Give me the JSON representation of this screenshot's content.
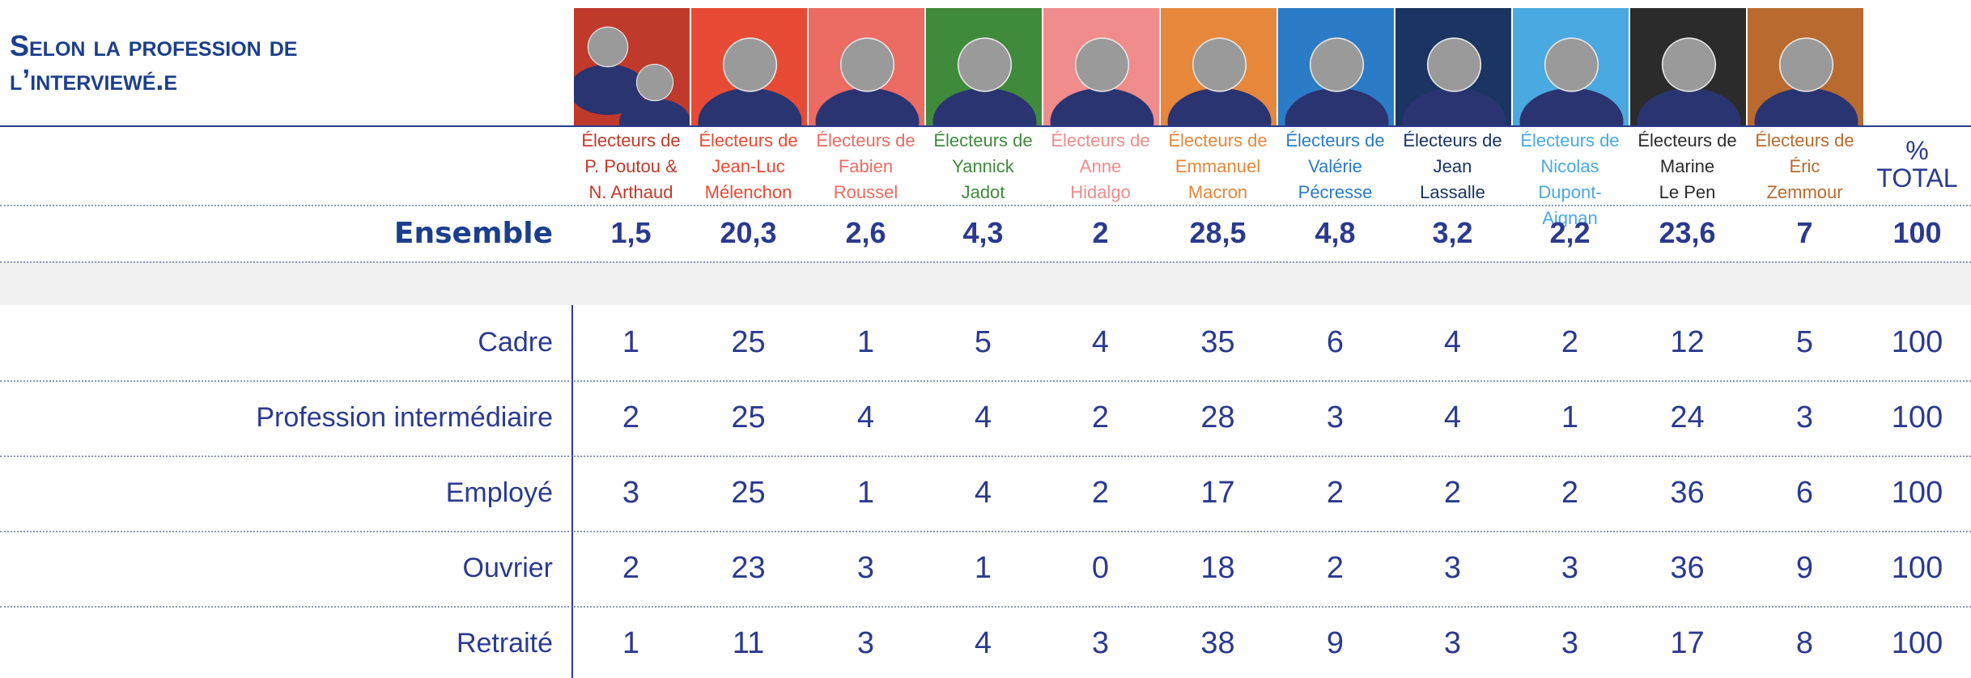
{
  "header": {
    "title": "Selon la profession de l’interviewé.e"
  },
  "columns": [
    {
      "color": "#bf3a2b",
      "label": [
        "Électeurs de",
        "P. Poutou &",
        "N. Arthaud"
      ]
    },
    {
      "color": "#e84b35",
      "label": [
        "Électeurs de",
        "Jean-Luc",
        "Mélenchon"
      ]
    },
    {
      "color": "#ec6b62",
      "label": [
        "Électeurs de",
        "Fabien",
        "Roussel"
      ]
    },
    {
      "color": "#3f8a3b",
      "label": [
        "Électeurs de",
        "Yannick",
        "Jadot"
      ]
    },
    {
      "color": "#f08c8c",
      "label": [
        "Électeurs de",
        "Anne",
        "Hidalgo"
      ]
    },
    {
      "color": "#e6873b",
      "label": [
        "Électeurs de",
        "Emmanuel",
        "Macron"
      ]
    },
    {
      "color": "#2b7bc6",
      "label": [
        "Électeurs de",
        "Valérie",
        "Pécresse"
      ]
    },
    {
      "color": "#1b3461",
      "label": [
        "Électeurs de",
        "Jean",
        "Lassalle"
      ]
    },
    {
      "color": "#4aa9e1",
      "label": [
        "Électeurs de",
        "Nicolas",
        "Dupont-Aignan"
      ]
    },
    {
      "color": "#2b2b2b",
      "label": [
        "Électeurs de",
        "Marine",
        "Le Pen"
      ]
    },
    {
      "color": "#b96a2e",
      "label": [
        "Électeurs de",
        "Éric",
        "Zemmour"
      ]
    }
  ],
  "total_header": [
    "%",
    "TOTAL"
  ],
  "ensemble": {
    "label": "Ensemble",
    "values": [
      "1,5",
      "20,3",
      "2,6",
      "4,3",
      2,
      "28,5",
      "4,8",
      "3,2",
      "2,2",
      "23,6",
      7,
      100
    ]
  },
  "table": {
    "rows": [
      {
        "label": "Cadre",
        "values": [
          1,
          25,
          1,
          5,
          4,
          35,
          6,
          4,
          2,
          12,
          5,
          100
        ]
      },
      {
        "label": "Profession intermédiaire",
        "values": [
          2,
          25,
          4,
          4,
          2,
          28,
          3,
          4,
          1,
          24,
          3,
          100
        ]
      },
      {
        "label": "Employé",
        "values": [
          3,
          25,
          1,
          4,
          2,
          17,
          2,
          2,
          2,
          36,
          6,
          100
        ]
      },
      {
        "label": "Ouvrier",
        "values": [
          2,
          23,
          3,
          1,
          0,
          18,
          2,
          3,
          3,
          36,
          9,
          100
        ]
      },
      {
        "label": "Retraité",
        "values": [
          1,
          11,
          3,
          4,
          3,
          38,
          9,
          3,
          3,
          17,
          8,
          100
        ]
      }
    ]
  }
}
